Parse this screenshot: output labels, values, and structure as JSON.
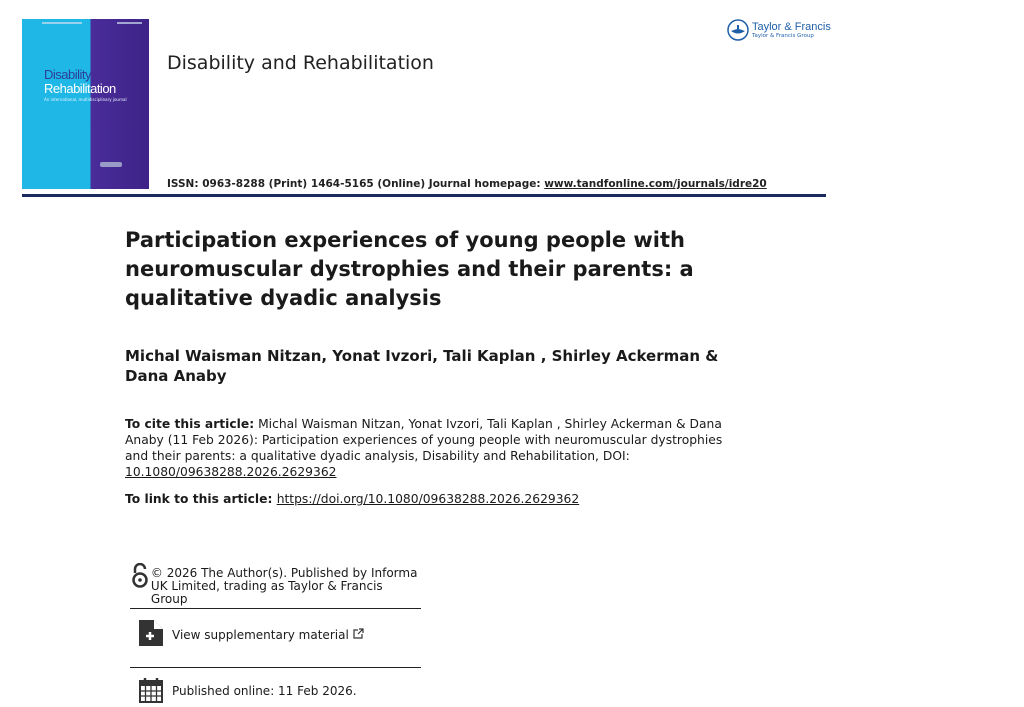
{
  "cover": {
    "title_line1": "Disability",
    "title_line2": "Rehabilitation",
    "subtitle": "An international, multidisciplinary journal",
    "colors": {
      "left": "#1fb8e6",
      "right": "#3d2387"
    }
  },
  "journal": {
    "name": "Disability and Rehabilitation",
    "issn": "ISSN: 0963-8288 (Print) 1464-5165 (Online) Journal homepage: ",
    "homepage": "www.tandfonline.com/journals/idre20"
  },
  "publisher": {
    "name": "Taylor & Francis",
    "group": "Taylor & Francis Group",
    "color": "#1f5fa8"
  },
  "article": {
    "title": "Participation experiences of young people with neuromuscular dystrophies and their parents: a qualitative dyadic analysis",
    "authors": "Michal Waisman Nitzan, Yonat Ivzori, Tali Kaplan , Shirley Ackerman & Dana Anaby",
    "cite_label": "To cite this article:",
    "cite_text": " Michal Waisman Nitzan, Yonat Ivzori, Tali Kaplan , Shirley Ackerman & Dana Anaby (11 Feb 2026): Participation experiences of young people with neuromuscular dystrophies and their parents: a qualitative dyadic analysis, Disability and Rehabilitation, DOI: ",
    "cite_doi": "10.1080/09638288.2026.2629362",
    "link_label": "To link to this article: ",
    "link_url": "https://doi.org/10.1080/09638288.2026.2629362"
  },
  "info": {
    "open_access": "© 2026 The Author(s). Published by Informa UK Limited, trading as Taylor & Francis Group",
    "supplementary": "View supplementary material",
    "published": "Published online: 11 Feb 2026."
  }
}
